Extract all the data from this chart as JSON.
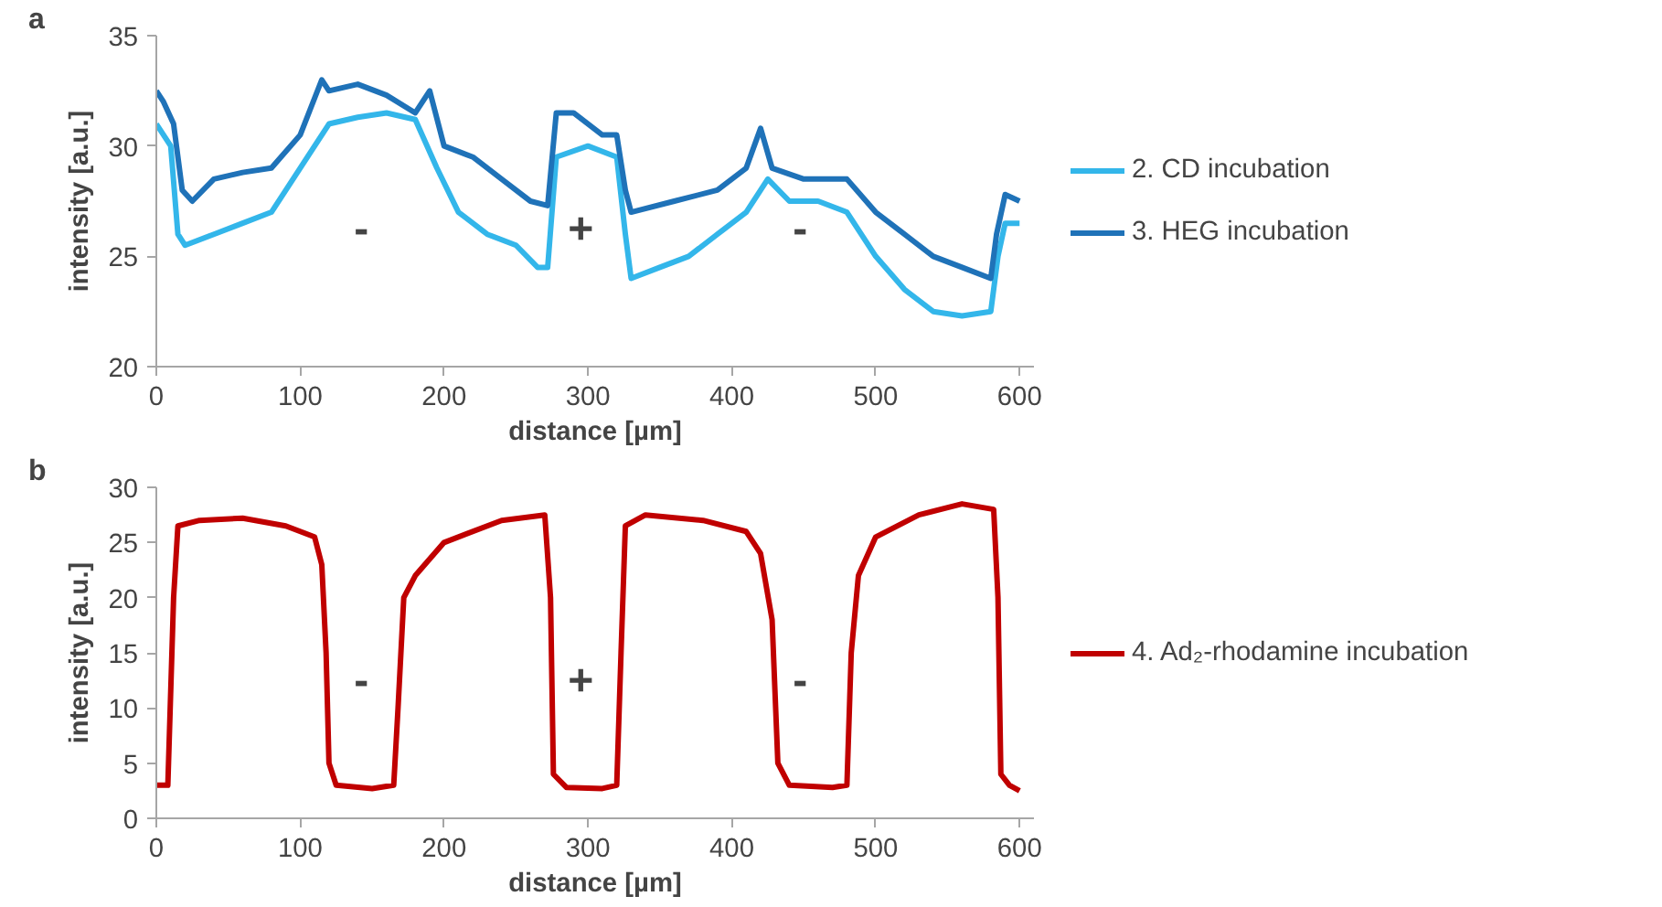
{
  "chart_data": [
    {
      "type": "line",
      "title": "a",
      "xlabel": "distance [µm]",
      "ylabel": "intensity [a.u.]",
      "xlim": [
        0,
        610
      ],
      "ylim": [
        20,
        35
      ],
      "xticks": [
        0,
        100,
        200,
        300,
        400,
        500,
        600
      ],
      "yticks": [
        20,
        25,
        30,
        35
      ],
      "grid": false,
      "legend": "right",
      "marker": "none",
      "line_style": "solid",
      "annotations": [
        "-",
        "+",
        "-"
      ],
      "series": [
        {
          "name": "2. CD incubation",
          "color": "#33b6ea",
          "x": [
            0,
            10,
            15,
            20,
            40,
            60,
            80,
            100,
            120,
            140,
            160,
            180,
            195,
            210,
            230,
            250,
            265,
            272,
            278,
            300,
            320,
            326,
            330,
            350,
            370,
            390,
            410,
            425,
            440,
            460,
            480,
            500,
            520,
            540,
            560,
            580,
            585,
            590,
            600
          ],
          "values": [
            31,
            30,
            26,
            25.5,
            26,
            26.5,
            27,
            29,
            31,
            31.3,
            31.5,
            31.2,
            29,
            27,
            26,
            25.5,
            24.5,
            24.5,
            29.5,
            30,
            29.5,
            26,
            24,
            24.5,
            25,
            26,
            27,
            28.5,
            27.5,
            27.5,
            27,
            25,
            23.5,
            22.5,
            22.3,
            22.5,
            25,
            26.5,
            26.5
          ]
        },
        {
          "name": "3. HEG incubation",
          "color": "#1f72b8",
          "x": [
            0,
            5,
            12,
            18,
            25,
            40,
            60,
            80,
            100,
            115,
            120,
            140,
            160,
            180,
            190,
            200,
            220,
            240,
            260,
            272,
            278,
            290,
            310,
            320,
            326,
            330,
            360,
            390,
            410,
            420,
            428,
            450,
            470,
            480,
            500,
            520,
            540,
            560,
            580,
            584,
            590,
            600
          ],
          "values": [
            32.5,
            32,
            31,
            28,
            27.5,
            28.5,
            28.8,
            29,
            30.5,
            33,
            32.5,
            32.8,
            32.3,
            31.5,
            32.5,
            30,
            29.5,
            28.5,
            27.5,
            27.3,
            31.5,
            31.5,
            30.5,
            30.5,
            28,
            27,
            27.5,
            28,
            29,
            30.8,
            29,
            28.5,
            28.5,
            28.5,
            27,
            26,
            25,
            24.5,
            24,
            26,
            27.8,
            27.5
          ]
        }
      ]
    },
    {
      "type": "line",
      "title": "b",
      "xlabel": "distance [µm]",
      "ylabel": "intensity [a.u.]",
      "xlim": [
        0,
        610
      ],
      "ylim": [
        0,
        30
      ],
      "xticks": [
        0,
        100,
        200,
        300,
        400,
        500,
        600
      ],
      "yticks": [
        0,
        5,
        10,
        15,
        20,
        25,
        30
      ],
      "grid": false,
      "legend": "right",
      "marker": "none",
      "line_style": "solid",
      "annotations": [
        "-",
        "+",
        "-"
      ],
      "series": [
        {
          "name": "4. Ad₂-rhodamine incubation",
          "color": "#c00000",
          "x": [
            0,
            8,
            12,
            15,
            30,
            60,
            90,
            110,
            115,
            118,
            120,
            125,
            150,
            165,
            168,
            172,
            180,
            200,
            240,
            270,
            274,
            276,
            285,
            310,
            320,
            323,
            326,
            340,
            380,
            410,
            420,
            428,
            432,
            440,
            470,
            480,
            483,
            488,
            500,
            530,
            560,
            582,
            585,
            587,
            593,
            600
          ],
          "values": [
            3,
            3,
            20,
            26.5,
            27,
            27.2,
            26.5,
            25.5,
            23,
            15,
            5,
            3,
            2.7,
            3,
            10,
            20,
            22,
            25,
            27,
            27.5,
            20,
            4,
            2.8,
            2.7,
            3,
            15,
            26.5,
            27.5,
            27,
            26,
            24,
            18,
            5,
            3,
            2.8,
            3,
            15,
            22,
            25.5,
            27.5,
            28.5,
            28,
            20,
            4,
            3,
            2.5
          ]
        }
      ]
    }
  ]
}
